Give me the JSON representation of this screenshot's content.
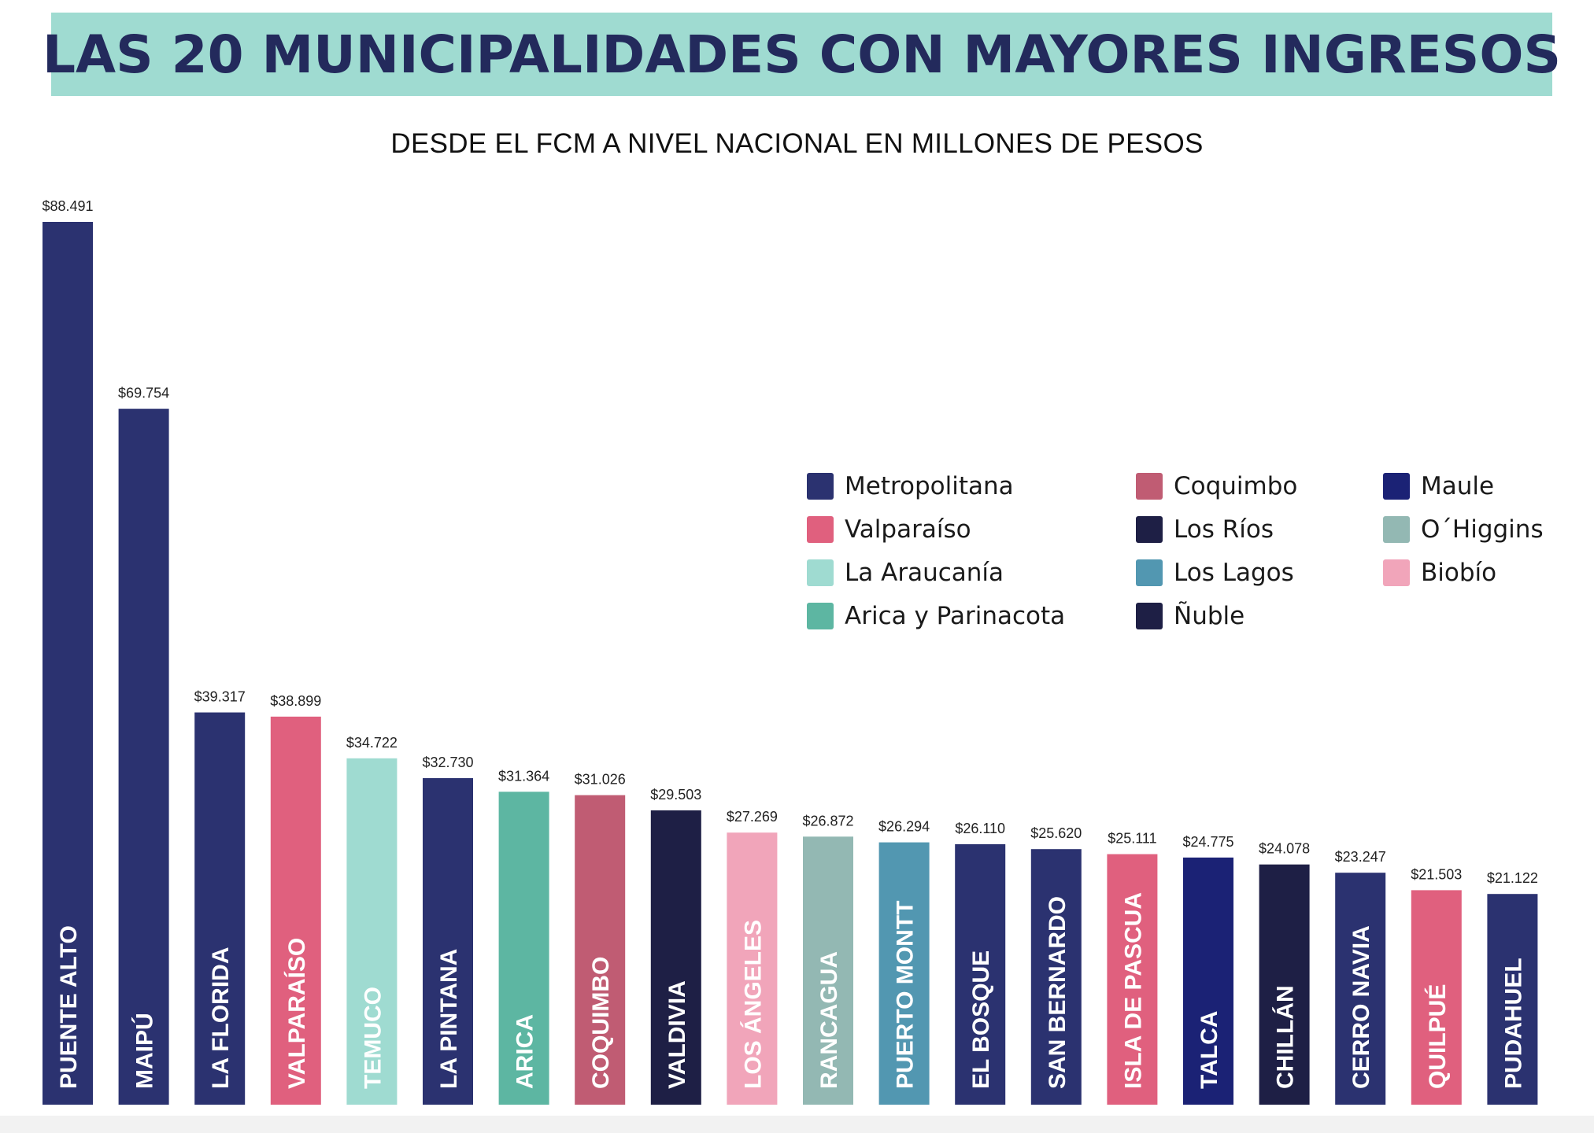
{
  "title": "LAS 20 MUNICIPALIDADES CON MAYORES INGRESOS",
  "subtitle": "DESDE EL FCM A NIVEL NACIONAL EN MILLONES DE PESOS",
  "region_colors": {
    "Metropolitana": "#2b3270",
    "Valparaíso": "#e0607e",
    "La Araucanía": "#9fdbd1",
    "Arica y Parinacota": "#5db6a2",
    "Coquimbo": "#c05c73",
    "Los Ríos": "#1e1f45",
    "Los Lagos": "#5297b1",
    "Ñuble": "#1e1f45",
    "Maule": "#1b2275",
    "O´Higgins": "#93b8b3",
    "Biobío": "#f1a5ba"
  },
  "legend": [
    {
      "label": "Metropolitana",
      "color": "#2b3270"
    },
    {
      "label": "Valparaíso",
      "color": "#e0607e"
    },
    {
      "label": "La Araucanía",
      "color": "#9fdbd1"
    },
    {
      "label": "Arica y Parinacota",
      "color": "#5db6a2"
    },
    {
      "label": "Coquimbo",
      "color": "#c05c73"
    },
    {
      "label": "Los Ríos",
      "color": "#1e1f45"
    },
    {
      "label": "Los Lagos",
      "color": "#5297b1"
    },
    {
      "label": "Ñuble",
      "color": "#1e1f45"
    },
    {
      "label": "Maule",
      "color": "#1b2275"
    },
    {
      "label": "O´Higgins",
      "color": "#93b8b3"
    },
    {
      "label": "Biobío",
      "color": "#f1a5ba"
    }
  ],
  "chart_data": {
    "type": "bar",
    "title": "LAS 20 MUNICIPALIDADES CON MAYORES INGRESOS",
    "subtitle": "DESDE EL FCM A NIVEL NACIONAL EN MILLONES DE PESOS",
    "xlabel": "",
    "ylabel": "",
    "grid": false,
    "legend_position": "right",
    "categories": [
      "PUENTE ALTO",
      "MAIPÚ",
      "LA FLORIDA",
      "VALPARAÍSO",
      "TEMUCO",
      "LA PINTANA",
      "ARICA",
      "COQUIMBO",
      "VALDIVIA",
      "LOS ÁNGELES",
      "RANCAGUA",
      "PUERTO MONTT",
      "EL BOSQUE",
      "SAN BERNARDO",
      "ISLA DE PASCUA",
      "TALCA",
      "CHILLÁN",
      "CERRO NAVIA",
      "QUILPUÉ",
      "PUDAHUEL"
    ],
    "values": [
      88491,
      69754,
      39317,
      38899,
      34722,
      32730,
      31364,
      31026,
      29503,
      27269,
      26872,
      26294,
      26110,
      25620,
      25111,
      24775,
      24078,
      23247,
      21503,
      21122
    ],
    "value_labels": [
      "$88.491",
      "$69.754",
      "$39.317",
      "$38.899",
      "$34.722",
      "$32.730",
      "$31.364",
      "$31.026",
      "$29.503",
      "$27.269",
      "$26.872",
      "$26.294",
      "$26.110",
      "$25.620",
      "$25.111",
      "$24.775",
      "$24.078",
      "$23.247",
      "$21.503",
      "$21.122"
    ],
    "regions": [
      "Metropolitana",
      "Metropolitana",
      "Metropolitana",
      "Valparaíso",
      "La Araucanía",
      "Metropolitana",
      "Arica y Parinacota",
      "Coquimbo",
      "Los Ríos",
      "Biobío",
      "O´Higgins",
      "Los Lagos",
      "Metropolitana",
      "Metropolitana",
      "Valparaíso",
      "Maule",
      "Ñuble",
      "Metropolitana",
      "Valparaíso",
      "Metropolitana"
    ],
    "ylim": [
      0,
      88491
    ]
  }
}
